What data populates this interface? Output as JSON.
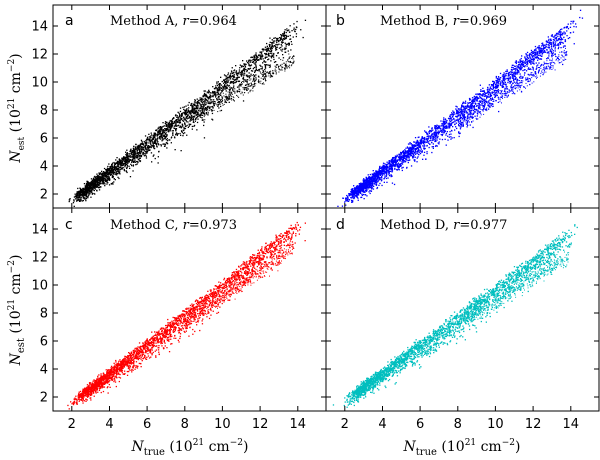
{
  "figure": {
    "xlabel_main": "N",
    "xlabel_sub": "true",
    "xlabel_units": "(10",
    "xlabel_exp": "21",
    "xlabel_tail": " cm",
    "xlabel_tail_exp": "−2",
    "xlabel_close": ")",
    "ylabel_main": "N",
    "ylabel_sub": "est",
    "ylabel_units": "(10",
    "ylabel_exp": "21",
    "ylabel_tail": " cm",
    "ylabel_tail_exp": "−2",
    "ylabel_close": ")"
  },
  "chart_data": [
    {
      "type": "scatter",
      "letter": "a",
      "title": "Method A, ",
      "r_label": "r",
      "r_value": "=0.964",
      "color": "#000000",
      "xlim": [
        1,
        15.5
      ],
      "ylim": [
        1,
        15.5
      ],
      "xticks": [
        2,
        4,
        6,
        8,
        10,
        12,
        14
      ],
      "yticks": [
        2,
        4,
        6,
        8,
        10,
        12,
        14
      ],
      "ytick_labels": [
        "2",
        "4",
        "6",
        "8",
        "10",
        "12",
        "14"
      ],
      "main_branch": {
        "x_start": 2.6,
        "x_end": 13.7,
        "y_start": 2.4,
        "y_end": 14.0,
        "spread": 0.9
      },
      "lower_branch": {
        "x_start": 8.0,
        "x_end": 13.8,
        "y_start": 7.2,
        "y_end": 11.6,
        "spread": 0.5
      }
    },
    {
      "type": "scatter",
      "letter": "b",
      "title": "Method B, ",
      "r_label": "r",
      "r_value": "=0.969",
      "color": "#0000ff",
      "xlim": [
        1,
        15.5
      ],
      "ylim": [
        1,
        15.5
      ],
      "xticks": [
        2,
        4,
        6,
        8,
        10,
        12,
        14
      ],
      "yticks": [
        2,
        4,
        6,
        8,
        10,
        12,
        14
      ],
      "main_branch": {
        "x_start": 2.6,
        "x_end": 13.8,
        "y_start": 2.4,
        "y_end": 14.1,
        "spread": 0.8
      },
      "lower_branch": {
        "x_start": 8.0,
        "x_end": 13.8,
        "y_start": 7.0,
        "y_end": 12.0,
        "spread": 0.5
      }
    },
    {
      "type": "scatter",
      "letter": "c",
      "title": "Method C, ",
      "r_label": "r",
      "r_value": "=0.973",
      "color": "#ff0000",
      "xlim": [
        1,
        15.5
      ],
      "ylim": [
        1,
        15.5
      ],
      "xticks": [
        2,
        4,
        6,
        8,
        10,
        12,
        14
      ],
      "xtick_labels": [
        "2",
        "4",
        "6",
        "8",
        "10",
        "12",
        "14"
      ],
      "yticks": [
        2,
        4,
        6,
        8,
        10,
        12,
        14
      ],
      "ytick_labels": [
        "2",
        "4",
        "6",
        "8",
        "10",
        "12",
        "14"
      ],
      "main_branch": {
        "x_start": 2.7,
        "x_end": 13.8,
        "y_start": 2.5,
        "y_end": 14.3,
        "spread": 0.8
      },
      "lower_branch": {
        "x_start": 8.0,
        "x_end": 13.8,
        "y_start": 7.2,
        "y_end": 12.6,
        "spread": 0.5
      }
    },
    {
      "type": "scatter",
      "letter": "d",
      "title": "Method D, ",
      "r_label": "r",
      "r_value": "=0.977",
      "color": "#00bfbf",
      "xlim": [
        1,
        15.5
      ],
      "ylim": [
        1,
        15.5
      ],
      "xticks": [
        2,
        4,
        6,
        8,
        10,
        12,
        14
      ],
      "xtick_labels": [
        "2",
        "4",
        "6",
        "8",
        "10",
        "12",
        "14"
      ],
      "yticks": [
        2,
        4,
        6,
        8,
        10,
        12,
        14
      ],
      "main_branch": {
        "x_start": 2.7,
        "x_end": 13.7,
        "y_start": 2.6,
        "y_end": 13.7,
        "spread": 0.8
      },
      "lower_branch": {
        "x_start": 8.5,
        "x_end": 13.9,
        "y_start": 7.6,
        "y_end": 12.0,
        "spread": 0.5
      }
    }
  ]
}
